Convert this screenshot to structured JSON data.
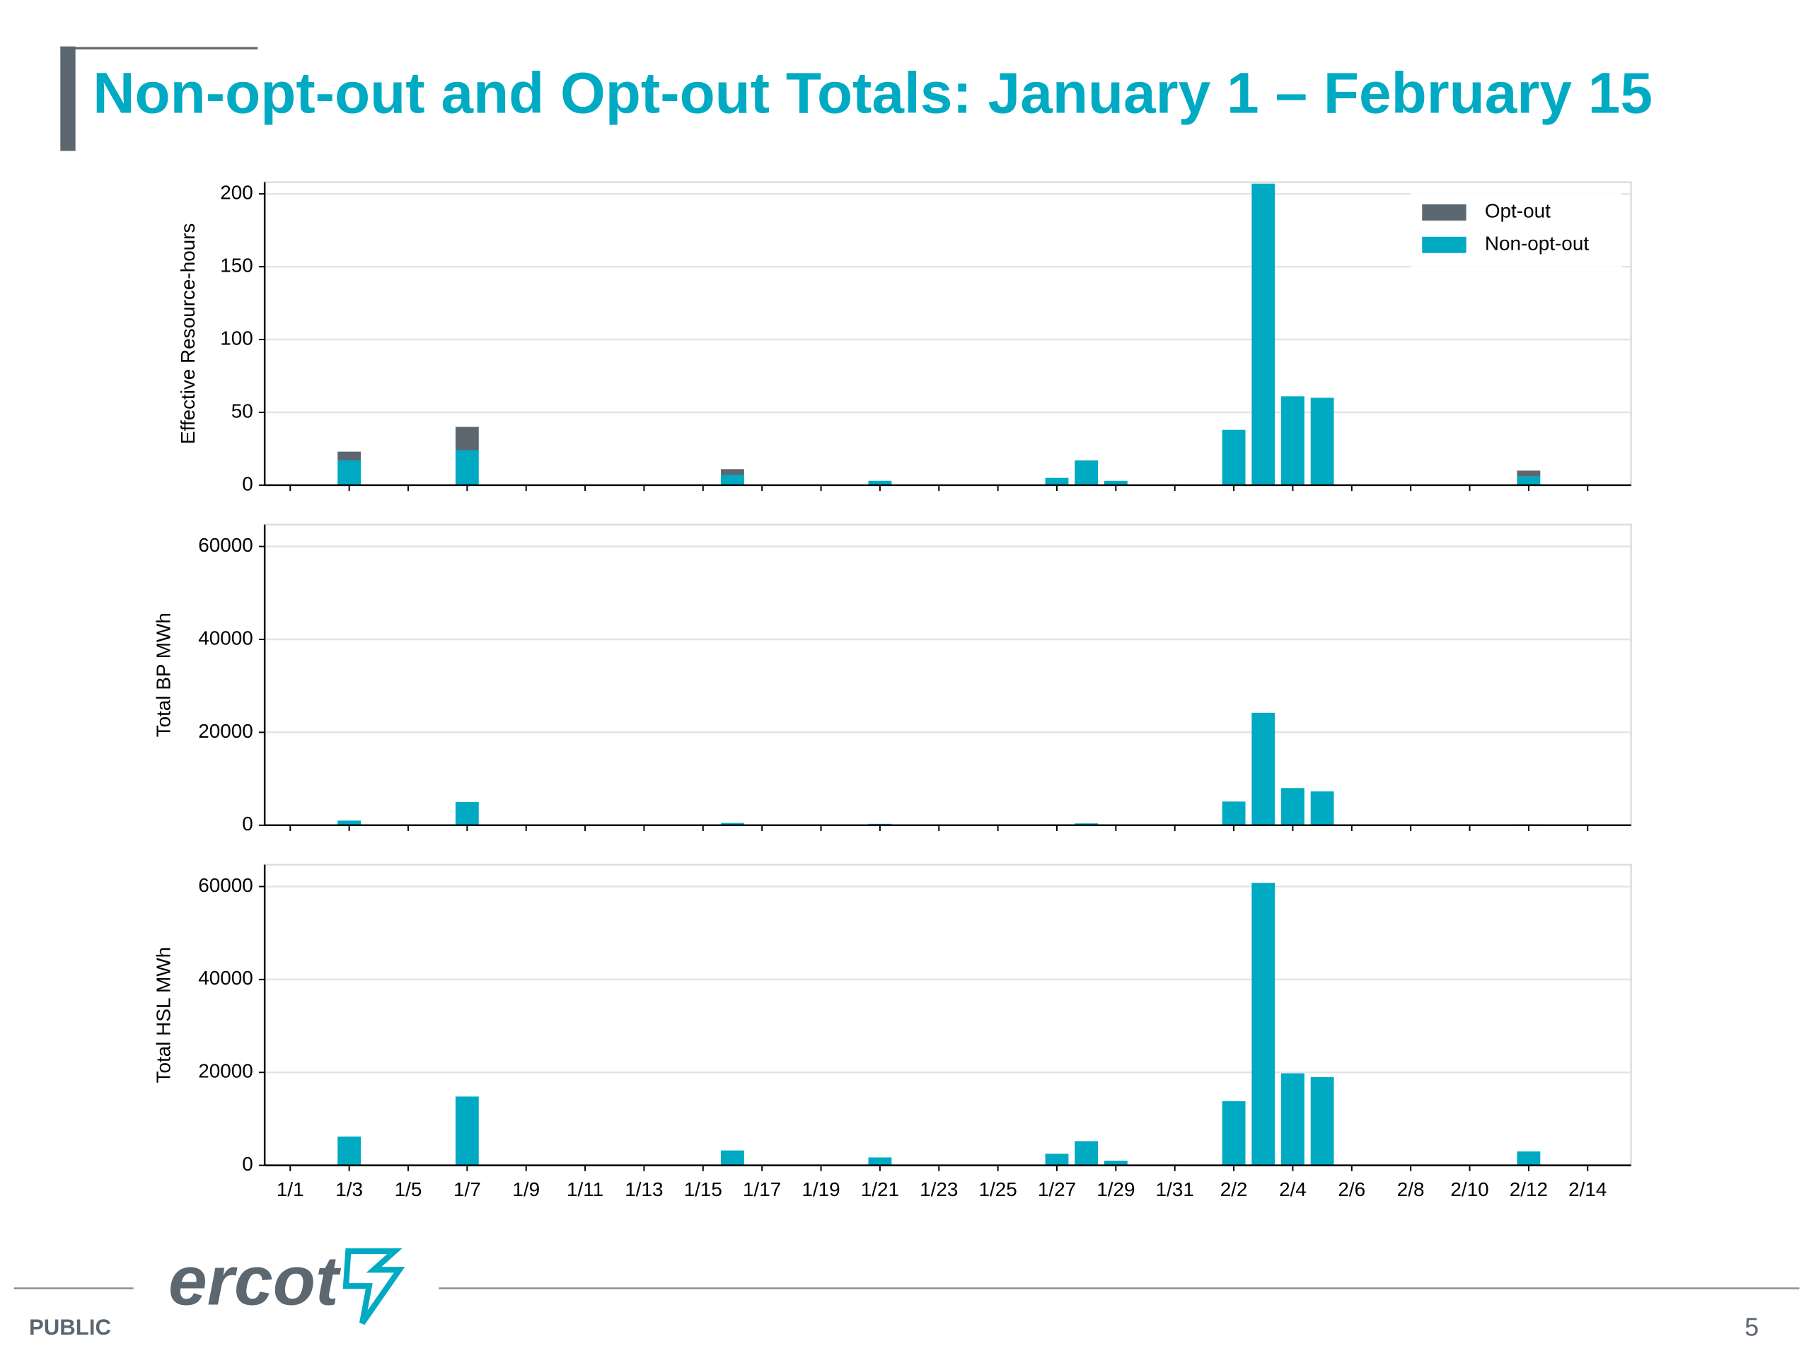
{
  "title": "Non-opt-out and Opt-out Totals: January 1 – February 15",
  "logo": "ercot",
  "footer": {
    "label": "PUBLIC",
    "page": "5"
  },
  "chart_data": [
    {
      "type": "stacked_bar",
      "ylabel": "Effective Resource-hours",
      "ylim": [
        0,
        208
      ],
      "yticks": [
        0,
        50,
        100,
        150,
        200
      ],
      "grid": true,
      "legend": "upper right",
      "series": [
        {
          "name": "Opt-out",
          "color": "#5c6770",
          "values": [
            0,
            0,
            6,
            0,
            0,
            0,
            16,
            0,
            0,
            0,
            0,
            0,
            0,
            0,
            0,
            4,
            0,
            0,
            0,
            0,
            0,
            0,
            0,
            0,
            0,
            0,
            0,
            0,
            0,
            0,
            0,
            0,
            0,
            0,
            0,
            0,
            0,
            0,
            0,
            0,
            0,
            0,
            4,
            0,
            0,
            0
          ]
        },
        {
          "name": "Non-opt-out",
          "color": "#00aac3",
          "values": [
            0,
            0,
            17,
            0,
            0,
            0,
            24,
            0,
            0,
            0,
            0,
            0,
            0,
            0,
            0,
            7,
            0,
            0,
            0,
            0,
            3,
            0,
            0,
            0,
            0,
            0,
            5,
            17,
            3,
            0,
            0,
            0,
            38,
            207,
            61,
            60,
            0,
            0,
            0,
            0,
            0,
            0,
            6,
            0,
            0,
            0
          ]
        }
      ]
    },
    {
      "type": "bar",
      "ylabel": "Total BP MWh",
      "color": "#00aac3",
      "ylim": [
        0,
        64700
      ],
      "yticks": [
        0,
        20000,
        40000,
        60000
      ],
      "grid": true,
      "values": [
        0,
        0,
        1000,
        0,
        0,
        0,
        5000,
        0,
        0,
        0,
        0,
        0,
        0,
        0,
        0,
        500,
        0,
        0,
        0,
        0,
        300,
        0,
        0,
        0,
        0,
        0,
        200,
        400,
        0,
        0,
        0,
        0,
        5100,
        24200,
        8000,
        7300,
        0,
        0,
        0,
        0,
        0,
        0,
        200,
        0,
        0,
        0
      ]
    },
    {
      "type": "bar",
      "ylabel": "Total HSL MWh",
      "color": "#00aac3",
      "ylim": [
        0,
        64700
      ],
      "yticks": [
        0,
        20000,
        40000,
        60000
      ],
      "grid": true,
      "categories": [
        "1/1",
        null,
        "1/3",
        null,
        "1/5",
        null,
        "1/7",
        null,
        "1/9",
        null,
        "1/11",
        null,
        "1/13",
        null,
        "1/15",
        null,
        "1/17",
        null,
        "1/19",
        null,
        "1/21",
        null,
        "1/23",
        null,
        "1/25",
        null,
        "1/27",
        null,
        "1/29",
        null,
        "1/31",
        null,
        "2/2",
        null,
        "2/4",
        null,
        "2/6",
        null,
        "2/8",
        null,
        "2/10",
        null,
        "2/12",
        null,
        "2/14",
        null
      ],
      "values": [
        0,
        0,
        6200,
        0,
        0,
        0,
        14800,
        0,
        0,
        0,
        0,
        0,
        0,
        0,
        0,
        3200,
        0,
        0,
        0,
        0,
        1700,
        0,
        0,
        0,
        0,
        0,
        2500,
        5200,
        1000,
        0,
        0,
        0,
        13800,
        60800,
        19800,
        19000,
        0,
        0,
        0,
        0,
        0,
        0,
        3000,
        0,
        0,
        0
      ]
    }
  ]
}
